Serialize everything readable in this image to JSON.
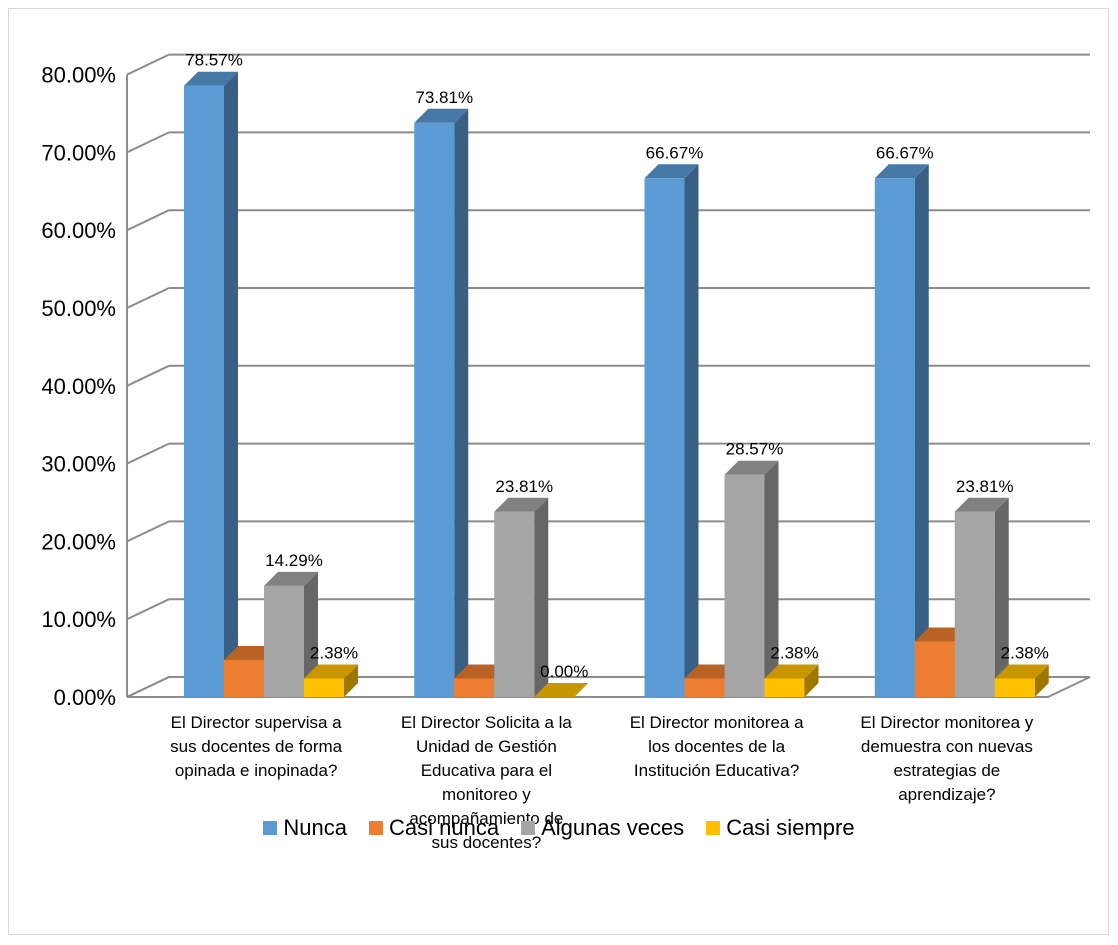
{
  "chart_data": {
    "type": "bar",
    "title": "",
    "xlabel": "",
    "ylabel": "",
    "ylim": [
      0,
      80
    ],
    "yticks": [
      "0.00%",
      "10.00%",
      "20.00%",
      "30.00%",
      "40.00%",
      "50.00%",
      "60.00%",
      "70.00%",
      "80.00%"
    ],
    "grid": true,
    "legend_position": "bottom",
    "categories": [
      "El Director supervisa a sus docentes de forma opinada e inopinada?",
      "El Director Solicita a la Unidad de Gestión Educativa para el monitoreo y acompañamiento de sus docentes?",
      "El Director monitorea a los docentes de la Institución Educativa?",
      "El Director monitorea y demuestra con nuevas estrategias de aprendizaje?"
    ],
    "category_lines": [
      [
        "El Director supervisa a",
        "sus docentes de forma",
        "opinada e inopinada?"
      ],
      [
        "El Director Solicita a la",
        "Unidad de Gestión",
        "Educativa para el",
        "monitoreo y",
        "acompañamiento de",
        "sus docentes?"
      ],
      [
        "El Director monitorea a",
        "los docentes de la",
        "Institución Educativa?"
      ],
      [
        "El Director monitorea y",
        "demuestra con nuevas",
        "estrategias de",
        "aprendizaje?"
      ]
    ],
    "series": [
      {
        "name": "Nunca",
        "color": "#5B9BD5",
        "values": [
          78.57,
          73.81,
          66.67,
          66.67
        ],
        "labels": [
          "78.57%",
          "73.81%",
          "66.67%",
          "66.67%"
        ]
      },
      {
        "name": "Casi nunca",
        "color": "#ED7D31",
        "values": [
          4.76,
          2.38,
          2.38,
          7.14
        ],
        "labels": [
          "",
          "",
          "",
          ""
        ]
      },
      {
        "name": "Algunas veces",
        "color": "#A5A5A5",
        "values": [
          14.29,
          23.81,
          28.57,
          23.81
        ],
        "labels": [
          "14.29%",
          "23.81%",
          "28.57%",
          "23.81%"
        ]
      },
      {
        "name": "Casi siempre",
        "color": "#FFC000",
        "values": [
          2.38,
          0.0,
          2.38,
          2.38
        ],
        "labels": [
          "2.38%",
          "0.00%",
          "2.38%",
          "2.38%"
        ]
      }
    ]
  }
}
